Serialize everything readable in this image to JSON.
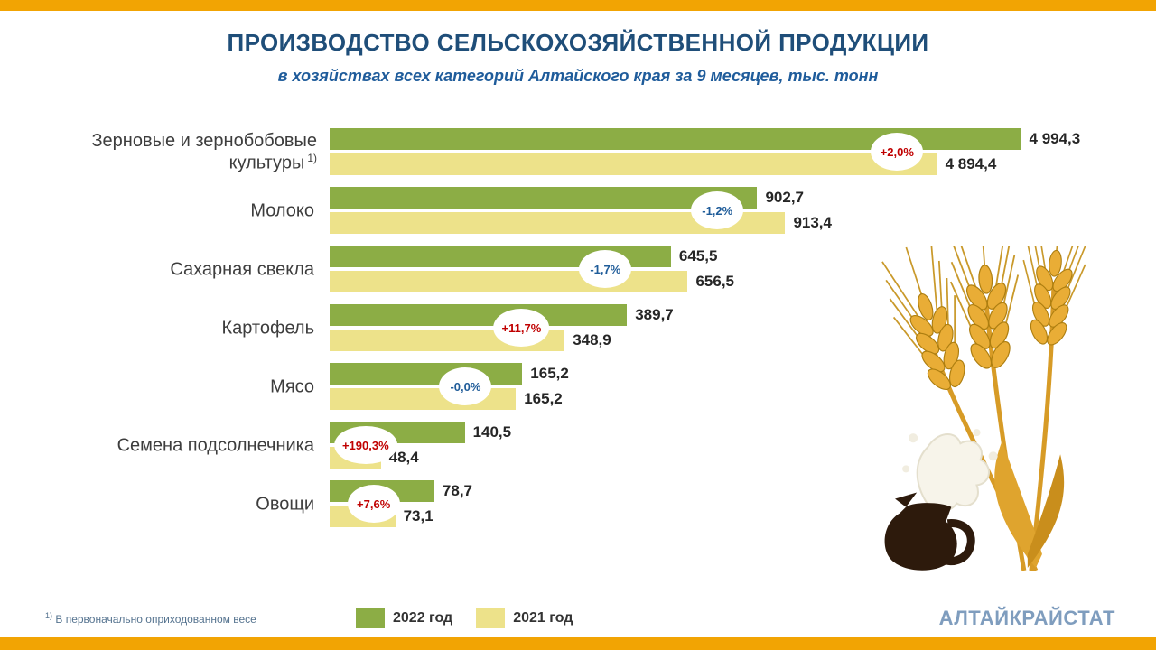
{
  "header": {
    "title": "ПРОИЗВОДСТВО СЕЛЬСКОХОЗЯЙСТВЕННОЙ ПРОДУКЦИИ",
    "subtitle": "в хозяйствах всех категорий  Алтайского края за 9 месяцев, тыс. тонн"
  },
  "chart_data": {
    "type": "bar",
    "orientation": "horizontal",
    "unit": "тыс. тонн",
    "not_to_scale": true,
    "legend_position": "bottom",
    "colors": {
      "series_2022": "#8CAD45",
      "series_2021": "#EDE28A",
      "positive_change": "#C00000",
      "negative_change": "#1F5C99",
      "accent_stripe": "#F2A403",
      "title": "#1F4E79"
    },
    "categories": [
      "Зерновые и зернобобовые культуры",
      "Молоко",
      "Сахарная свекла",
      "Картофель",
      "Мясо",
      "Семена подсолнечника",
      "Овощи"
    ],
    "series": [
      {
        "name": "2022 год",
        "values": [
          4994.3,
          902.7,
          645.5,
          389.7,
          165.2,
          140.5,
          78.7
        ]
      },
      {
        "name": "2021 год",
        "values": [
          4894.4,
          913.4,
          656.5,
          348.9,
          165.2,
          48.4,
          73.1
        ]
      }
    ],
    "change_percent": [
      2.0,
      -1.2,
      -1.7,
      11.7,
      -0.0,
      190.3,
      7.6
    ],
    "legend": [
      {
        "label": "2022 год",
        "color": "#8CAD45"
      },
      {
        "label": "2021 год",
        "color": "#EDE28A"
      }
    ],
    "rows": [
      {
        "label": "Зерновые и зернобобовые культуры",
        "sup": "1)",
        "value_2022": "4 994,3",
        "value_2021": "4 894,4",
        "change": "+2,0%",
        "direction": "up",
        "w2022_pct": 86.5,
        "w2021_pct": 76.0,
        "badge_center_pct": 71.0
      },
      {
        "label": "Молоко",
        "sup": "",
        "value_2022": "902,7",
        "value_2021": "913,4",
        "change": "-1,2%",
        "direction": "down",
        "w2022_pct": 53.5,
        "w2021_pct": 57.0,
        "badge_center_pct": 48.5
      },
      {
        "label": "Сахарная свекла",
        "sup": "",
        "value_2022": "645,5",
        "value_2021": "656,5",
        "change": "-1,7%",
        "direction": "down",
        "w2022_pct": 42.7,
        "w2021_pct": 44.8,
        "badge_center_pct": 34.5
      },
      {
        "label": "Картофель",
        "sup": "",
        "value_2022": "389,7",
        "value_2021": "348,9",
        "change": "+11,7%",
        "direction": "up",
        "w2022_pct": 37.2,
        "w2021_pct": 29.4,
        "badge_center_pct": 24.0
      },
      {
        "label": "Мясо",
        "sup": "",
        "value_2022": "165,2",
        "value_2021": "165,2",
        "change": "-0,0%",
        "direction": "down",
        "w2022_pct": 24.1,
        "w2021_pct": 23.3,
        "badge_center_pct": 17.0
      },
      {
        "label": "Семена подсолнечника",
        "sup": "",
        "value_2022": "140,5",
        "value_2021": "48,4",
        "change": "+190,3%",
        "direction": "up",
        "w2022_pct": 16.9,
        "w2021_pct": 6.4,
        "badge_center_pct": 4.5
      },
      {
        "label": "Овощи",
        "sup": "",
        "value_2022": "78,7",
        "value_2021": "73,1",
        "change": "+7,6%",
        "direction": "up",
        "w2022_pct": 13.1,
        "w2021_pct": 8.2,
        "badge_center_pct": 5.5
      }
    ]
  },
  "footer": {
    "footnote_marker": "1)",
    "footnote": "В первоначально оприходованном весе",
    "brand": "АЛТАЙКРАЙСТАТ"
  },
  "decoration": {
    "name": "wheat-ears-and-milk-jug"
  }
}
